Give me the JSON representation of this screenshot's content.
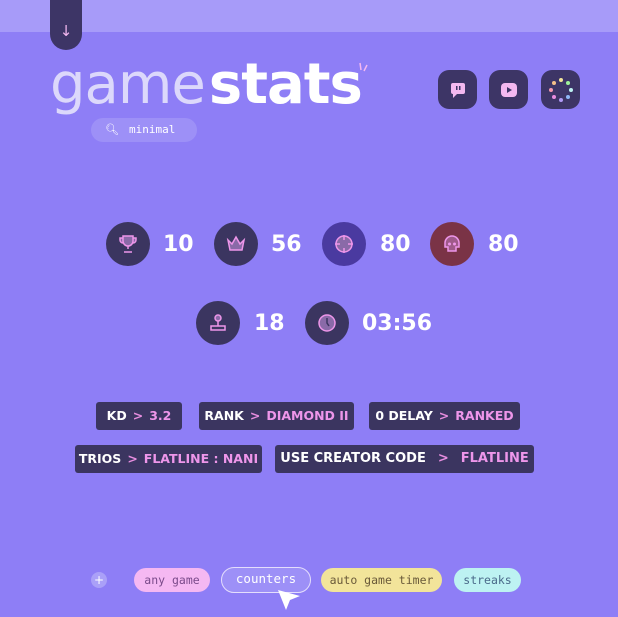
{
  "header": {
    "title_light": "game",
    "title_bold": "stats",
    "search_value": "minimal",
    "icons": [
      "twitch-icon",
      "youtube-icon",
      "color-wheel-icon"
    ]
  },
  "stats": [
    {
      "icon": "trophy-icon",
      "value": "10"
    },
    {
      "icon": "crown-icon",
      "value": "56"
    },
    {
      "icon": "crosshair-icon",
      "value": "80"
    },
    {
      "icon": "skull-icon",
      "value": "80",
      "color": "#7a3346"
    },
    {
      "icon": "joystick-icon",
      "value": "18"
    },
    {
      "icon": "clock-icon",
      "value": "03:56"
    }
  ],
  "tags": [
    {
      "label": "KD",
      "value": "3.2"
    },
    {
      "label": "RANK",
      "value": "DIAMOND II"
    },
    {
      "label": "0 DELAY",
      "value": "RANKED"
    },
    {
      "label": "TRIOS",
      "value": "FLATLINE : NANI"
    },
    {
      "label": "USE CREATOR CODE",
      "value": "FLATLINE"
    }
  ],
  "tag_separator": ">",
  "chips": [
    {
      "label": "any game",
      "color": "#f5b8f2"
    },
    {
      "label": "counters",
      "color": "#9d90f7"
    },
    {
      "label": "auto game timer",
      "color": "#f2e49a"
    },
    {
      "label": "streaks",
      "color": "#bdf2f2"
    }
  ],
  "colors": {
    "background": "#8e7ef6",
    "dark": "#3b3560",
    "accent": "#ee96ea"
  }
}
